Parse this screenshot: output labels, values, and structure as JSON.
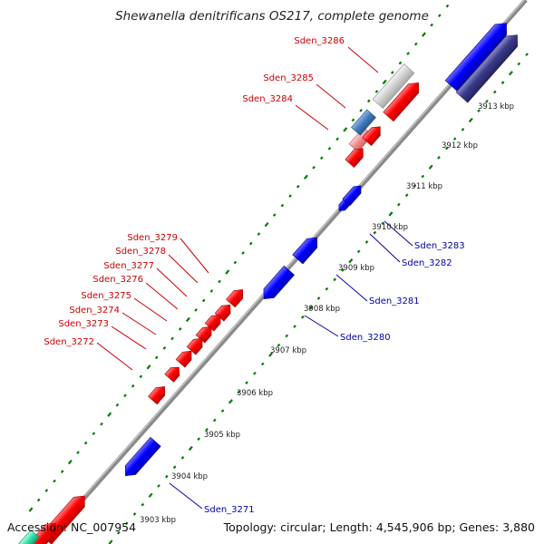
{
  "title": "Shewanella denitrificans OS217, complete genome",
  "footer": {
    "accession": "Accession: NC_007954",
    "topology": "Topology: circular; Length: 4,545,906 bp; Genes: 3,880"
  },
  "colors": {
    "forward_gene": "#ff0000",
    "reverse_gene": "#0000ff",
    "reverse_gene_dark": "#3a3a8c",
    "forward_label": "#cc0000",
    "reverse_label": "#0000aa",
    "backbone": "#999999",
    "tick": "#008000"
  },
  "kbp_labels": [
    {
      "text": "3903 kbp"
    },
    {
      "text": "3904 kbp"
    },
    {
      "text": "3905 kbp"
    },
    {
      "text": "3906 kbp"
    },
    {
      "text": "3907 kbp"
    },
    {
      "text": "3908 kbp"
    },
    {
      "text": "3909 kbp"
    },
    {
      "text": "3910 kbp"
    },
    {
      "text": "3911 kbp"
    },
    {
      "text": "3912 kbp"
    },
    {
      "text": "3913 kbp"
    }
  ],
  "gene_labels": [
    {
      "text": "Sden_3286",
      "strand": "forward"
    },
    {
      "text": "Sden_3285",
      "strand": "forward"
    },
    {
      "text": "Sden_3284",
      "strand": "forward"
    },
    {
      "text": "Sden_3279",
      "strand": "forward"
    },
    {
      "text": "Sden_3278",
      "strand": "forward"
    },
    {
      "text": "Sden_3277",
      "strand": "forward"
    },
    {
      "text": "Sden_3276",
      "strand": "forward"
    },
    {
      "text": "Sden_3275",
      "strand": "forward"
    },
    {
      "text": "Sden_3274",
      "strand": "forward"
    },
    {
      "text": "Sden_3273",
      "strand": "forward"
    },
    {
      "text": "Sden_3272",
      "strand": "forward"
    },
    {
      "text": "Sden_3283",
      "strand": "reverse"
    },
    {
      "text": "Sden_3282",
      "strand": "reverse"
    },
    {
      "text": "Sden_3281",
      "strand": "reverse"
    },
    {
      "text": "Sden_3280",
      "strand": "reverse"
    },
    {
      "text": "Sden_3271",
      "strand": "reverse"
    }
  ]
}
